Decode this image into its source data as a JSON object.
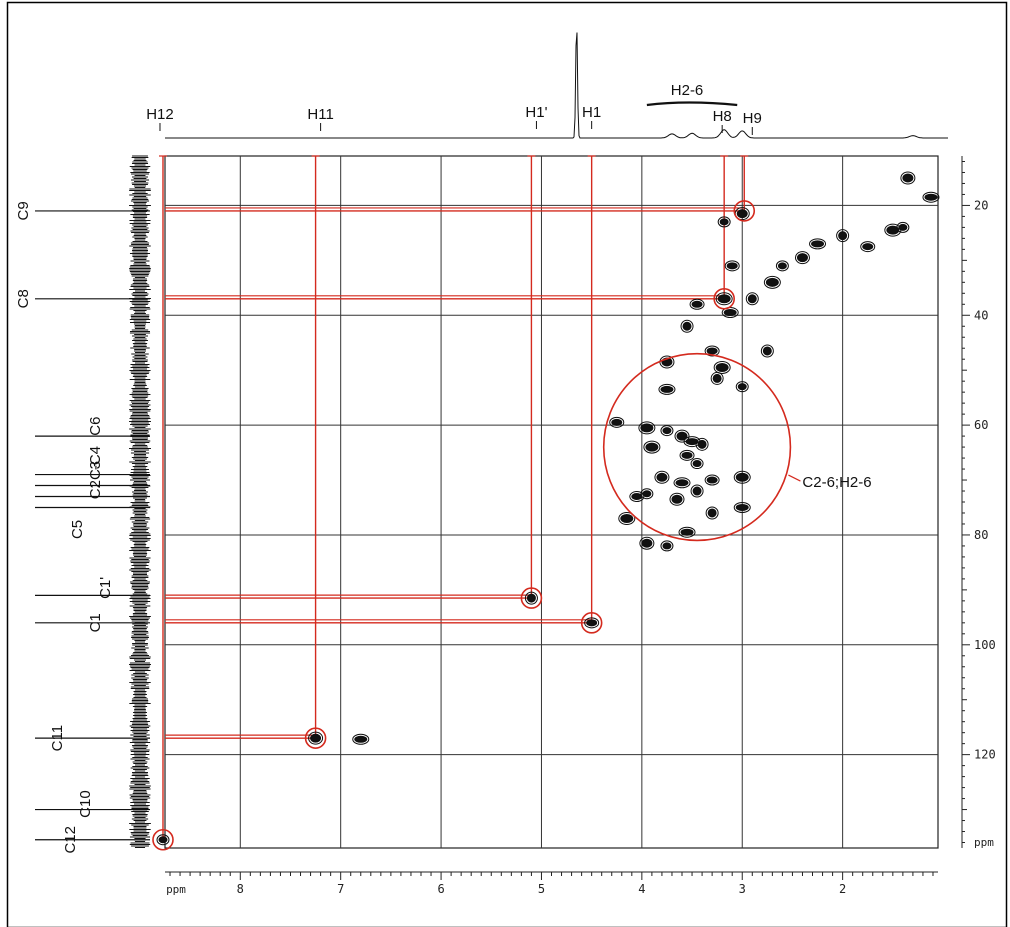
{
  "chart_data": {
    "type": "scatter",
    "subtype": "2D NMR HSQC contour spectrum",
    "x_axis": {
      "unit_label": "ppm",
      "range": [
        8.75,
        1.05
      ],
      "reversed": true,
      "ticks": [
        8,
        7,
        6,
        5,
        4,
        3,
        2
      ],
      "gridlines": [
        8.0,
        7.0,
        6.0,
        5.0,
        4.0,
        3.0,
        2.0
      ]
    },
    "y_axis": {
      "unit_label": "ppm",
      "range": [
        11,
        137
      ],
      "reversed": true,
      "side": "right",
      "ticks": [
        20,
        40,
        60,
        80,
        100,
        120
      ],
      "gridlines": [
        20,
        40,
        60,
        80,
        100,
        120
      ]
    },
    "grid": true,
    "proton_spectrum": {
      "peaks": [
        {
          "x": 4.65,
          "height": 1.0
        },
        {
          "x": 3.18,
          "height": 0.07
        },
        {
          "x": 3.0,
          "height": 0.06
        },
        {
          "x": 3.5,
          "height": 0.04
        },
        {
          "x": 3.7,
          "height": 0.035
        },
        {
          "x": 1.3,
          "height": 0.02
        }
      ],
      "labels": [
        {
          "text": "H12",
          "x": 8.8
        },
        {
          "text": "H11",
          "x": 7.2
        },
        {
          "text": "H1'",
          "x": 5.05
        },
        {
          "text": "H1",
          "x": 4.5
        },
        {
          "text": "H2-6",
          "x": 3.55
        },
        {
          "text": "H8",
          "x": 3.2
        },
        {
          "text": "H9",
          "x": 2.9
        }
      ]
    },
    "carbon_spectrum": {
      "labels": [
        {
          "text": "C9",
          "y": 21
        },
        {
          "text": "C8",
          "y": 37
        },
        {
          "text": "C6",
          "y": 62
        },
        {
          "text": "C2C3",
          "y": 71
        },
        {
          "text": "-C4",
          "y": 69
        },
        {
          "text": "C5",
          "y": 77
        },
        {
          "text": "C1'",
          "y": 91
        },
        {
          "text": "C1",
          "y": 96
        },
        {
          "text": "C11",
          "y": 117
        },
        {
          "text": "C10",
          "y": 130
        },
        {
          "text": "C12",
          "y": 135.5
        }
      ],
      "peaks": [
        21,
        37,
        62,
        69,
        71,
        73,
        75,
        91,
        96,
        117,
        130,
        135.5
      ]
    },
    "correlations": [
      {
        "x": 8.77,
        "y": 135.5,
        "label": "H12/C12",
        "circled": true
      },
      {
        "x": 7.25,
        "y": 117,
        "label": "H11/C11",
        "circled": true
      },
      {
        "x": 5.1,
        "y": 91.5,
        "label": "H1'/C1'",
        "circled": true
      },
      {
        "x": 4.5,
        "y": 96,
        "label": "H1/C1",
        "circled": true
      },
      {
        "x": 3.18,
        "y": 37,
        "label": "H8/C8",
        "circled": true
      },
      {
        "x": 2.98,
        "y": 21,
        "label": "H9/C9",
        "circled": true
      }
    ],
    "cross_peaks": [
      {
        "x": 8.77,
        "y": 135.5
      },
      {
        "x": 7.25,
        "y": 117
      },
      {
        "x": 6.8,
        "y": 117.2
      },
      {
        "x": 5.1,
        "y": 91.5
      },
      {
        "x": 4.5,
        "y": 96
      },
      {
        "x": 3.18,
        "y": 37
      },
      {
        "x": 3.18,
        "y": 23
      },
      {
        "x": 3.0,
        "y": 21.5
      },
      {
        "x": 3.12,
        "y": 39.5
      },
      {
        "x": 2.9,
        "y": 37
      },
      {
        "x": 3.1,
        "y": 31
      },
      {
        "x": 2.7,
        "y": 34
      },
      {
        "x": 2.6,
        "y": 31
      },
      {
        "x": 2.4,
        "y": 29.5
      },
      {
        "x": 2.25,
        "y": 27
      },
      {
        "x": 2.0,
        "y": 25.5
      },
      {
        "x": 1.75,
        "y": 27.5
      },
      {
        "x": 1.5,
        "y": 24.5
      },
      {
        "x": 1.4,
        "y": 24
      },
      {
        "x": 1.35,
        "y": 15
      },
      {
        "x": 1.12,
        "y": 18.5
      },
      {
        "x": 3.55,
        "y": 42
      },
      {
        "x": 3.3,
        "y": 46.5
      },
      {
        "x": 3.2,
        "y": 49.5
      },
      {
        "x": 3.0,
        "y": 53
      },
      {
        "x": 3.75,
        "y": 48.5
      },
      {
        "x": 3.75,
        "y": 53.5
      },
      {
        "x": 3.25,
        "y": 51.5
      },
      {
        "x": 4.25,
        "y": 59.5
      },
      {
        "x": 3.95,
        "y": 60.5
      },
      {
        "x": 3.75,
        "y": 61
      },
      {
        "x": 3.6,
        "y": 62
      },
      {
        "x": 3.5,
        "y": 63
      },
      {
        "x": 3.4,
        "y": 63.5
      },
      {
        "x": 3.55,
        "y": 65.5
      },
      {
        "x": 3.9,
        "y": 64
      },
      {
        "x": 3.45,
        "y": 67
      },
      {
        "x": 3.8,
        "y": 69.5
      },
      {
        "x": 3.6,
        "y": 70.5
      },
      {
        "x": 3.45,
        "y": 72
      },
      {
        "x": 3.3,
        "y": 70
      },
      {
        "x": 3.0,
        "y": 69.5
      },
      {
        "x": 3.95,
        "y": 72.5
      },
      {
        "x": 3.65,
        "y": 73.5
      },
      {
        "x": 3.0,
        "y": 75
      },
      {
        "x": 3.3,
        "y": 76
      },
      {
        "x": 4.05,
        "y": 73
      },
      {
        "x": 4.15,
        "y": 77
      },
      {
        "x": 3.75,
        "y": 82
      },
      {
        "x": 3.95,
        "y": 81.5
      },
      {
        "x": 3.55,
        "y": 79.5
      },
      {
        "x": 2.75,
        "y": 46.5
      },
      {
        "x": 3.45,
        "y": 38
      }
    ],
    "annotation": {
      "text": "C2-6;H2-6",
      "x": 3.45,
      "y": 64,
      "radius_ppm": 0.93
    }
  }
}
